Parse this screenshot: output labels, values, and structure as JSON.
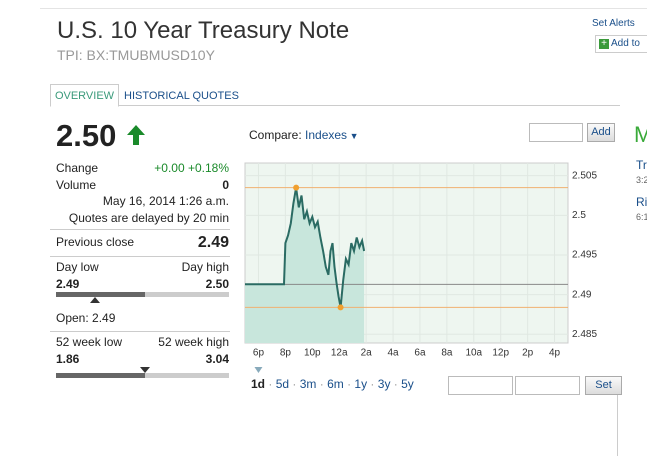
{
  "header": {
    "title": "U.S. 10 Year Treasury Note",
    "symbol": "TPI: BX:TMUBMUSD10Y",
    "set_alerts": "Set Alerts",
    "add_to": "Add to"
  },
  "tabs": [
    "OVERVIEW",
    "HISTORICAL QUOTES"
  ],
  "quote": {
    "price": "2.50",
    "change_label": "Change",
    "change": "+0.00 +0.18%",
    "volume_label": "Volume",
    "volume": "0",
    "date": "May 16, 2014 1:26 a.m.",
    "delay": "Quotes are delayed by 20 min",
    "prev_close_label": "Previous close",
    "prev_close": "2.49",
    "day_low_label": "Day low",
    "day_high_label": "Day high",
    "day_low": "2.49",
    "day_high": "2.50",
    "open": "Open: 2.49",
    "wk52_low_label": "52 week low",
    "wk52_high_label": "52 week high",
    "wk52_low": "1.86",
    "wk52_high": "3.04"
  },
  "compare": {
    "label": "Compare:",
    "link": "Indexes",
    "add": "Add"
  },
  "chart_data": {
    "type": "line",
    "color": "#2a6b63",
    "fill": "#c8e6dc",
    "x": [
      -1,
      1.9,
      2.0,
      2.2,
      2.4,
      2.6,
      2.8,
      3.0,
      3.2,
      3.4,
      3.6,
      3.8,
      4.0,
      4.2,
      4.4,
      4.6,
      4.8,
      5.0,
      5.2,
      5.35,
      5.5,
      5.65,
      5.8,
      5.95,
      6.1,
      6.3,
      6.5,
      6.7,
      6.9,
      7.1,
      7.3,
      7.5,
      7.7,
      7.85
    ],
    "values": [
      2.4913,
      2.4913,
      2.4965,
      2.4975,
      2.499,
      2.5015,
      2.5035,
      2.501,
      2.5025,
      2.4995,
      2.5005,
      2.499,
      2.4998,
      2.4985,
      2.4992,
      2.4972,
      2.4955,
      2.4935,
      2.4925,
      2.4955,
      2.4965,
      2.4935,
      2.4915,
      2.4898,
      2.4884,
      2.4918,
      2.4945,
      2.4938,
      2.4965,
      2.4955,
      2.4972,
      2.496,
      2.4968,
      2.4955
    ],
    "markers": {
      "x": [
        2.8,
        6.1
      ],
      "y": [
        2.5035,
        2.4884
      ],
      "color": "#f0a030"
    },
    "hlines": [
      2.5035,
      2.4884
    ],
    "hline_color": "#f0b070",
    "baseline": 2.4913,
    "xlim": [
      -1,
      23
    ],
    "ylim": [
      2.4839,
      2.5066
    ],
    "xticks": [
      {
        "value": 0,
        "label": "6p"
      },
      {
        "value": 2,
        "label": "8p"
      },
      {
        "value": 4,
        "label": "10p"
      },
      {
        "value": 6,
        "label": "12a"
      },
      {
        "value": 8,
        "label": "2a"
      },
      {
        "value": 10,
        "label": "4a"
      },
      {
        "value": 12,
        "label": "6a"
      },
      {
        "value": 14,
        "label": "8a"
      },
      {
        "value": 16,
        "label": "10a"
      },
      {
        "value": 18,
        "label": "12p"
      },
      {
        "value": 20,
        "label": "2p"
      },
      {
        "value": 22,
        "label": "4p"
      }
    ],
    "yticks": [
      2.485,
      2.49,
      2.495,
      2.5,
      2.505
    ]
  },
  "ranges": [
    "1d",
    "5d",
    "3m",
    "6m",
    "1y",
    "3y",
    "5y"
  ],
  "set": "Set",
  "sidebar": [
    "M",
    "Tr",
    "3:2",
    "Ri",
    "6:1"
  ]
}
